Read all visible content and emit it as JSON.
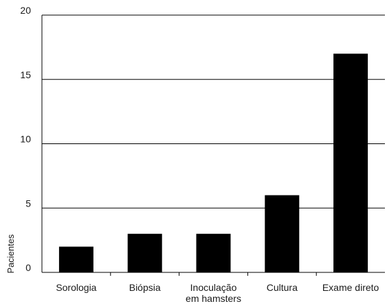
{
  "chart_data": {
    "type": "bar",
    "categories": [
      [
        "Sorologia"
      ],
      [
        "Biópsia"
      ],
      [
        "Inoculação",
        "em hamsters"
      ],
      [
        "Cultura"
      ],
      [
        "Exame direto"
      ]
    ],
    "values": [
      2,
      3,
      3,
      6,
      17
    ],
    "ylabel": "Pacientes",
    "xlabel": "",
    "ylim": [
      0,
      20
    ],
    "yticks": [
      0,
      5,
      10,
      15,
      20
    ],
    "grid": true,
    "bar_color": "#000000",
    "legend": null
  }
}
